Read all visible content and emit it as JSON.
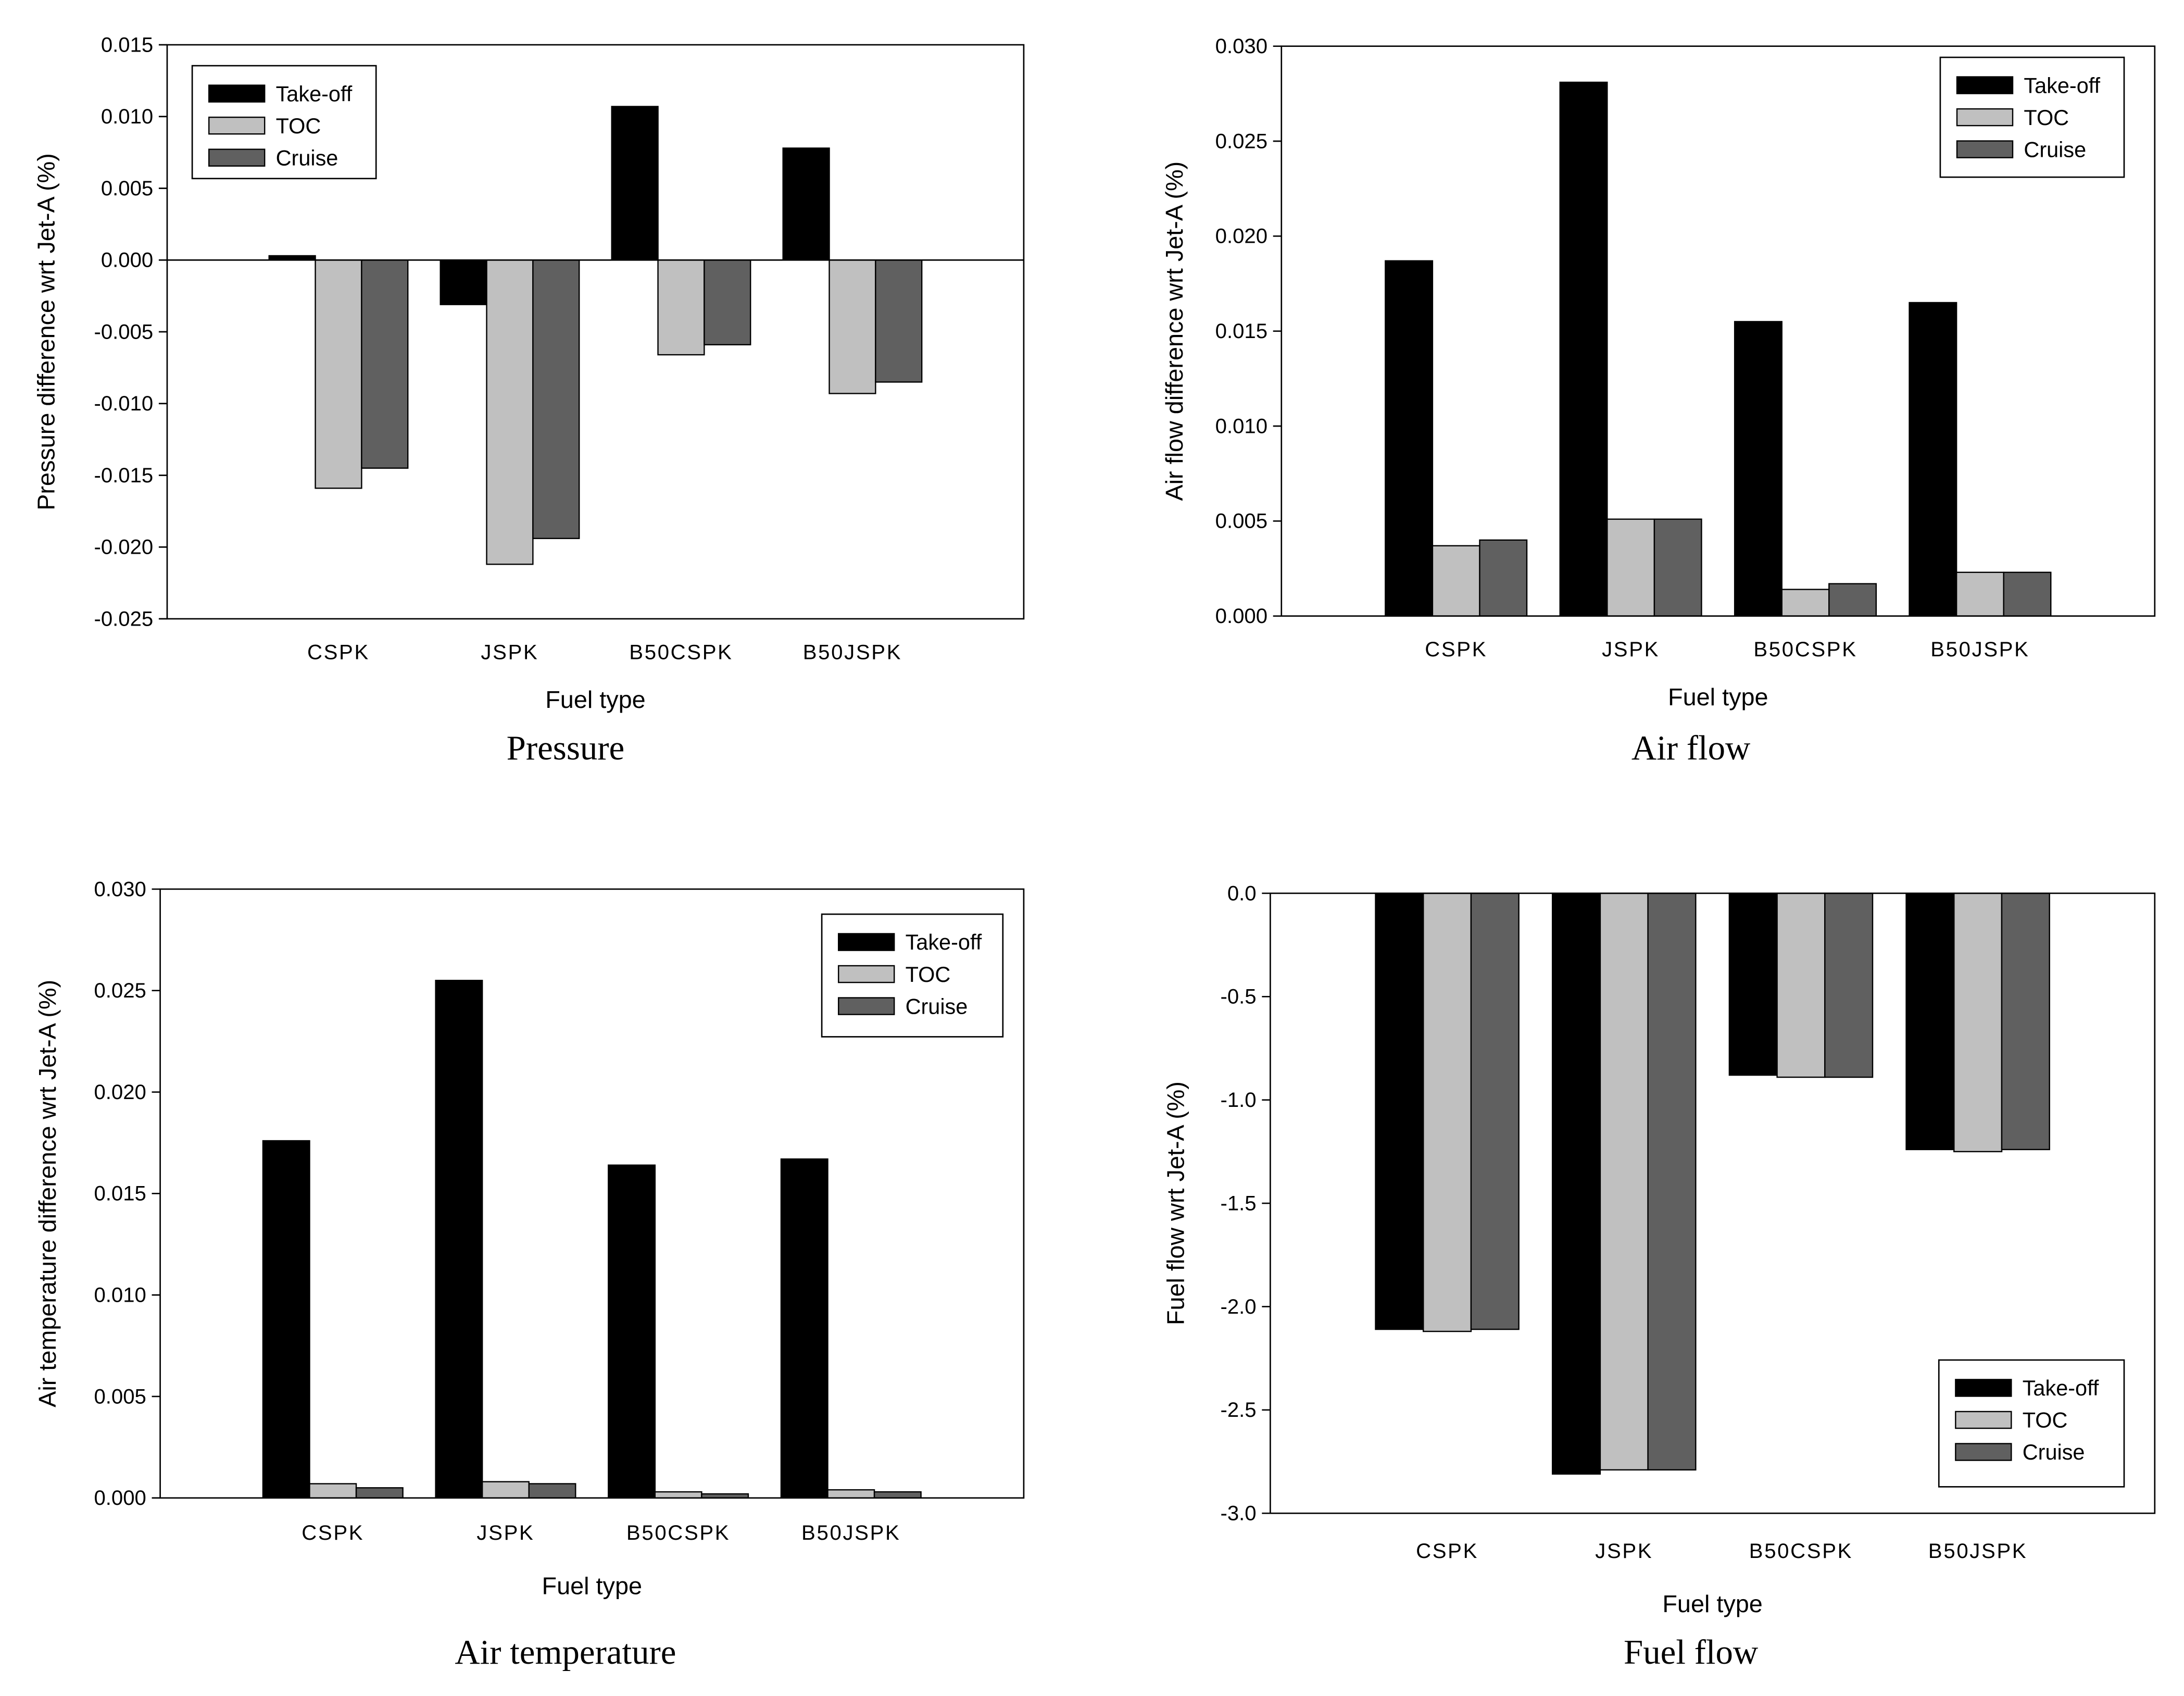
{
  "chart_data": [
    {
      "type": "bar",
      "caption": "Pressure",
      "xlabel": "Fuel type",
      "ylabel": "Pressure difference wrt Jet-A (%)",
      "categories": [
        "CSPK",
        "JSPK",
        "B50CSPK",
        "B50JSPK"
      ],
      "ylim": [
        -0.025,
        0.015
      ],
      "yticks": [
        "0.015",
        "0.010",
        "0.005",
        "0.000",
        "-0.005",
        "-0.010",
        "-0.015",
        "-0.020",
        "-0.025"
      ],
      "legend": "top-left",
      "zero_line": true,
      "grid": false,
      "series": [
        {
          "name": "Take-off",
          "color": "#000000",
          "values": [
            0.0003,
            -0.0031,
            0.0107,
            0.0078
          ]
        },
        {
          "name": "TOC",
          "color": "#c0c0c0",
          "values": [
            -0.0159,
            -0.0212,
            -0.0066,
            -0.0093
          ]
        },
        {
          "name": "Cruise",
          "color": "#606060",
          "values": [
            -0.0145,
            -0.0194,
            -0.0059,
            -0.0085
          ]
        }
      ]
    },
    {
      "type": "bar",
      "caption": "Air flow",
      "xlabel": "Fuel type",
      "ylabel": "Air flow difference wrt Jet-A (%)",
      "categories": [
        "CSPK",
        "JSPK",
        "B50CSPK",
        "B50JSPK"
      ],
      "ylim": [
        0.0,
        0.03
      ],
      "yticks": [
        "0.030",
        "0.025",
        "0.020",
        "0.015",
        "0.010",
        "0.005",
        "0.000"
      ],
      "legend": "top-right",
      "zero_line": false,
      "grid": false,
      "series": [
        {
          "name": "Take-off",
          "color": "#000000",
          "values": [
            0.0187,
            0.0281,
            0.0155,
            0.0165
          ]
        },
        {
          "name": "TOC",
          "color": "#c0c0c0",
          "values": [
            0.0037,
            0.0051,
            0.0014,
            0.0023
          ]
        },
        {
          "name": "Cruise",
          "color": "#606060",
          "values": [
            0.004,
            0.0051,
            0.0017,
            0.0023
          ]
        }
      ]
    },
    {
      "type": "bar",
      "caption": "Air temperature",
      "xlabel": "Fuel type",
      "ylabel": "Air temperature difference wrt Jet-A (%)",
      "categories": [
        "CSPK",
        "JSPK",
        "B50CSPK",
        "B50JSPK"
      ],
      "ylim": [
        0.0,
        0.03
      ],
      "yticks": [
        "0.030",
        "0.025",
        "0.020",
        "0.015",
        "0.010",
        "0.005",
        "0.000"
      ],
      "legend": "top-right",
      "zero_line": false,
      "grid": false,
      "series": [
        {
          "name": "Take-off",
          "color": "#000000",
          "values": [
            0.0176,
            0.0255,
            0.0164,
            0.0167
          ]
        },
        {
          "name": "TOC",
          "color": "#c0c0c0",
          "values": [
            0.0007,
            0.0008,
            0.0003,
            0.0004
          ]
        },
        {
          "name": "Cruise",
          "color": "#606060",
          "values": [
            0.0005,
            0.0007,
            0.0002,
            0.0003
          ]
        }
      ]
    },
    {
      "type": "bar",
      "caption": "Fuel flow",
      "xlabel": "Fuel type",
      "ylabel": "Fuel flow wrt Jet-A (%)",
      "categories": [
        "CSPK",
        "JSPK",
        "B50CSPK",
        "B50JSPK"
      ],
      "ylim": [
        -3.0,
        0.0
      ],
      "yticks": [
        "0.0",
        "-0.5",
        "-1.0",
        "-1.5",
        "-2.0",
        "-2.5",
        "-3.0"
      ],
      "legend": "bottom-right",
      "zero_line": false,
      "grid": false,
      "series": [
        {
          "name": "Take-off",
          "color": "#000000",
          "values": [
            -2.11,
            -2.81,
            -0.88,
            -1.24
          ]
        },
        {
          "name": "TOC",
          "color": "#c0c0c0",
          "values": [
            -2.12,
            -2.79,
            -0.89,
            -1.25
          ]
        },
        {
          "name": "Cruise",
          "color": "#606060",
          "values": [
            -2.11,
            -2.79,
            -0.89,
            -1.24
          ]
        }
      ]
    }
  ]
}
